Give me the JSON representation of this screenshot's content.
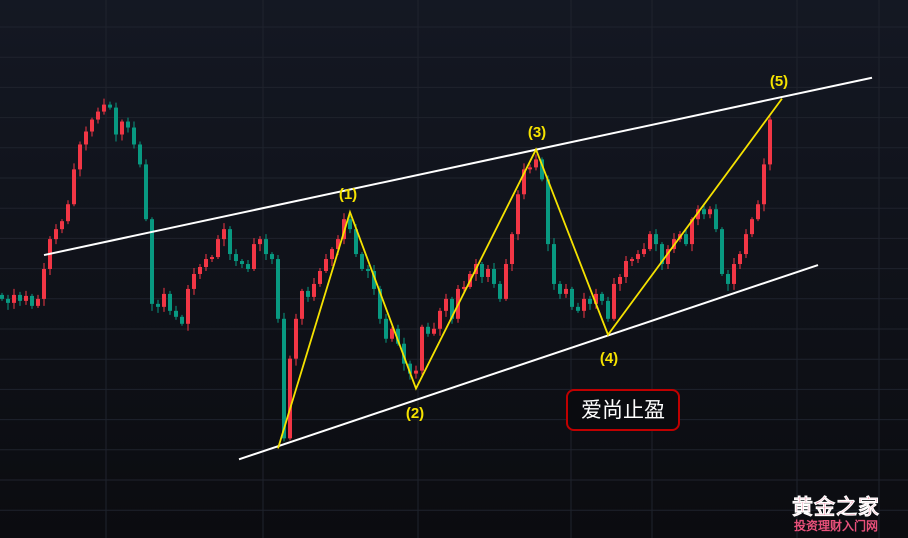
{
  "chart_data": {
    "type": "candlestick",
    "title": "",
    "xlabel": "",
    "ylabel": "",
    "ylim": [
      0,
      540
    ],
    "grid": true,
    "colors": {
      "up": "#f23645",
      "down": "#089981",
      "trendline": "#ffffff",
      "wave": "#f5e200",
      "background": "#11141c"
    },
    "closes": [
      240,
      236,
      244,
      238,
      243,
      233,
      240,
      270,
      300,
      310,
      318,
      335,
      370,
      395,
      408,
      420,
      428,
      435,
      432,
      405,
      418,
      412,
      395,
      375,
      320,
      235,
      232,
      245,
      228,
      222,
      215,
      250,
      265,
      272,
      280,
      282,
      300,
      310,
      285,
      278,
      275,
      270,
      295,
      300,
      285,
      280,
      220,
      100,
      180,
      220,
      248,
      242,
      255,
      268,
      280,
      290,
      300,
      320,
      310,
      285,
      270,
      268,
      250,
      220,
      200,
      210,
      195,
      175,
      165,
      168,
      212,
      205,
      210,
      228,
      240,
      220,
      250,
      252,
      265,
      275,
      262,
      270,
      255,
      240,
      275,
      305,
      345,
      370,
      372,
      380,
      360,
      295,
      255,
      245,
      250,
      232,
      228,
      240,
      235,
      245,
      238,
      220,
      255,
      262,
      278,
      280,
      285,
      290,
      305,
      295,
      275,
      290,
      300,
      305,
      295,
      320,
      330,
      325,
      330,
      310,
      265,
      255,
      275,
      285,
      305,
      320,
      335,
      375,
      420
    ],
    "wave_labels": [
      "(1)",
      "(2)",
      "(3)",
      "(4)",
      "(5)"
    ],
    "wave_points": [
      {
        "candle": 46,
        "price": 90
      },
      {
        "candle": 58,
        "price": 327
      },
      {
        "candle": 69,
        "price": 150
      },
      {
        "candle": 89,
        "price": 390
      },
      {
        "candle": 101,
        "price": 204
      },
      {
        "candle": 130,
        "price": 441
      }
    ],
    "channel": {
      "upper": [
        {
          "candle": 7,
          "price": 284
        },
        {
          "candle": 145,
          "price": 462
        }
      ],
      "lower": [
        {
          "candle": 39.5,
          "price": 79
        },
        {
          "candle": 136,
          "price": 274
        }
      ]
    }
  },
  "tag_label": "爱尚止盈",
  "watermark": {
    "title": "黄金之家",
    "subtitle": "投资理财入门网"
  }
}
